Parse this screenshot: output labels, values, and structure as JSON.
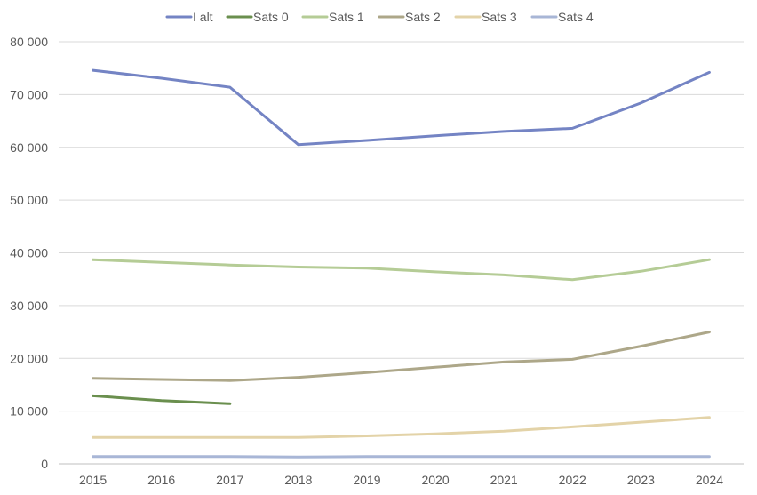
{
  "chart_data": {
    "type": "line",
    "title": "",
    "xlabel": "",
    "ylabel": "",
    "x": [
      "2015",
      "2016",
      "2017",
      "2018",
      "2019",
      "2020",
      "2021",
      "2022",
      "2023",
      "2024"
    ],
    "ylim": [
      0,
      80000
    ],
    "yticks": [
      0,
      10000,
      20000,
      30000,
      40000,
      50000,
      60000,
      70000,
      80000
    ],
    "ytick_labels": [
      "0",
      "10 000",
      "20 000",
      "30 000",
      "40 000",
      "50 000",
      "60 000",
      "70 000",
      "80 000"
    ],
    "grid": true,
    "legend_position": "top",
    "series": [
      {
        "name": "I alt",
        "color": "#7484c4",
        "values": [
          74600,
          73100,
          71400,
          60500,
          61300,
          62200,
          63000,
          63600,
          68400,
          74200
        ]
      },
      {
        "name": "Sats 0",
        "color": "#6a8f4e",
        "values": [
          12900,
          12000,
          11400,
          null,
          null,
          null,
          null,
          null,
          null,
          null
        ]
      },
      {
        "name": "Sats 1",
        "color": "#b5cc96",
        "values": [
          38700,
          38200,
          37700,
          37300,
          37100,
          36400,
          35800,
          34900,
          36500,
          38700
        ]
      },
      {
        "name": "Sats 2",
        "color": "#ada789",
        "values": [
          16200,
          16000,
          15800,
          16400,
          17300,
          18300,
          19300,
          19800,
          22300,
          25000
        ]
      },
      {
        "name": "Sats 3",
        "color": "#e3d3a8",
        "values": [
          5000,
          5000,
          5000,
          5000,
          5300,
          5700,
          6200,
          7000,
          7900,
          8800
        ]
      },
      {
        "name": "Sats 4",
        "color": "#a8b6d6",
        "values": [
          1400,
          1400,
          1400,
          1300,
          1400,
          1400,
          1400,
          1400,
          1400,
          1400
        ]
      }
    ]
  }
}
